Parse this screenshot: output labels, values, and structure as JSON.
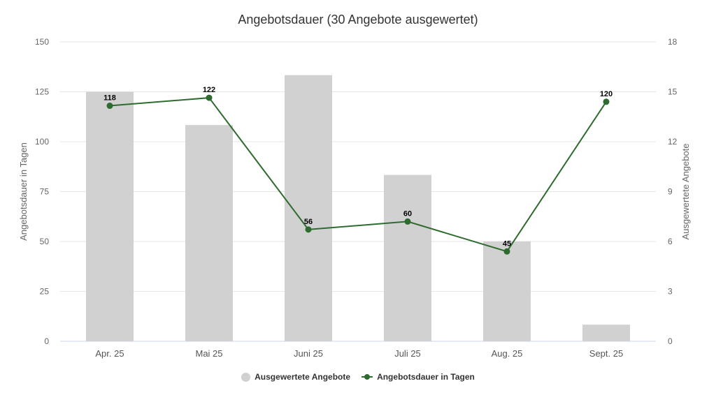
{
  "chart_data": {
    "type": "bar+line",
    "title": "Angebotsdauer (30 Angebote ausgewertet)",
    "categories": [
      "Apr. 25",
      "Mai 25",
      "Juni 25",
      "Juli 25",
      "Aug. 25",
      "Sept. 25"
    ],
    "series": [
      {
        "name": "Ausgewertete Angebote",
        "type": "bar",
        "axis": "right",
        "color": "#d1d1d1",
        "values": [
          15,
          13,
          16,
          10,
          6,
          1
        ]
      },
      {
        "name": "Angebotsdauer in Tagen",
        "type": "line",
        "axis": "left",
        "color": "#2e6b2e",
        "values": [
          118,
          122,
          56,
          60,
          45,
          120
        ],
        "data_labels": true
      }
    ],
    "ylabel": "Angebotsdauer in Tagen",
    "ylabel_right": "Ausgewertete Angebote",
    "ylim": [
      0,
      150
    ],
    "ylim_right": [
      0,
      18
    ],
    "yticks": [
      0,
      25,
      50,
      75,
      100,
      125,
      150
    ],
    "yticks_right": [
      0,
      3,
      6,
      9,
      12,
      15,
      18
    ],
    "grid": true,
    "legend_position": "bottom"
  },
  "legend": {
    "bar_label": "Ausgewertete Angebote",
    "line_label": "Angebotsdauer in Tagen"
  }
}
